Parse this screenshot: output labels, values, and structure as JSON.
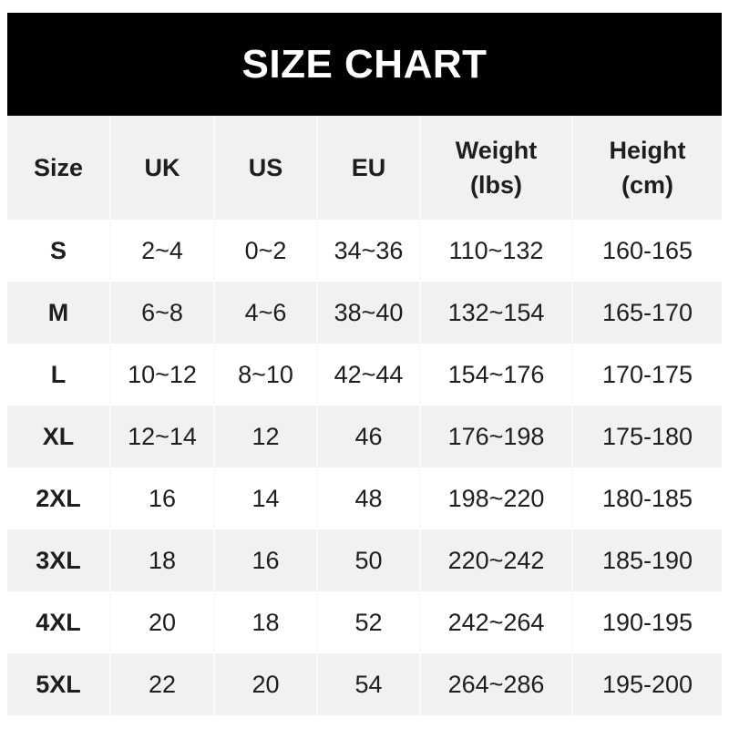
{
  "title": "SIZE CHART",
  "headers": [
    {
      "line1": "Size",
      "line2": ""
    },
    {
      "line1": "UK",
      "line2": ""
    },
    {
      "line1": "US",
      "line2": ""
    },
    {
      "line1": "EU",
      "line2": ""
    },
    {
      "line1": "Weight",
      "line2": "(lbs)"
    },
    {
      "line1": "Height",
      "line2": "(cm)"
    }
  ],
  "rows": [
    [
      "S",
      "2~4",
      "0~2",
      "34~36",
      "110~132",
      "160-165"
    ],
    [
      "M",
      "6~8",
      "4~6",
      "38~40",
      "132~154",
      "165-170"
    ],
    [
      "L",
      "10~12",
      "8~10",
      "42~44",
      "154~176",
      "170-175"
    ],
    [
      "XL",
      "12~14",
      "12",
      "46",
      "176~198",
      "175-180"
    ],
    [
      "2XL",
      "16",
      "14",
      "48",
      "198~220",
      "180-185"
    ],
    [
      "3XL",
      "18",
      "16",
      "50",
      "220~242",
      "185-190"
    ],
    [
      "4XL",
      "20",
      "18",
      "52",
      "242~264",
      "190-195"
    ],
    [
      "5XL",
      "22",
      "20",
      "54",
      "264~286",
      "195-200"
    ]
  ],
  "colors": {
    "title_bg": "#000000",
    "title_text": "#ffffff",
    "alt_row": "#f1f1f1",
    "text": "#1e1e1e"
  }
}
